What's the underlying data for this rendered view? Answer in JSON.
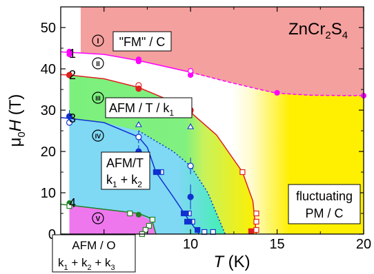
{
  "chart_data": {
    "type": "phase-diagram",
    "title_main": "ZnCr",
    "title_sub": "2",
    "title_end": "S",
    "title_sub2": "4",
    "xlabel": "T",
    "xunit": "(K)",
    "ylabel_prefix": "μ",
    "ylabel_sub": "0",
    "ylabel_var": "H",
    "yunit": "(T)",
    "xlim": [
      2.5,
      20
    ],
    "ylim": [
      0,
      55
    ],
    "xticks": [
      "5",
      "10",
      "15",
      "20"
    ],
    "xtick_values": [
      5,
      10,
      15,
      20
    ],
    "yticks": [
      "0",
      "10",
      "20",
      "30",
      "40",
      "50"
    ],
    "ytick_values": [
      0,
      10,
      20,
      30,
      40,
      50
    ],
    "phase_labels": [
      {
        "roman": "I",
        "name": "\"FM\" / C"
      },
      {
        "roman": "II",
        "name": ""
      },
      {
        "roman": "III",
        "name": "AFM / T / k",
        "sub": "1"
      },
      {
        "roman": "IV",
        "name": "AFM/T",
        "line2": "k",
        "sub": "1",
        "mid": " + k",
        "sub2": "2"
      },
      {
        "roman": "V",
        "name": "AFM / O",
        "line2": "k",
        "sub": "1",
        "mid": " + k",
        "sub2": "2",
        "mid2": " + k",
        "sub3": "3"
      }
    ],
    "boundary_numbers": [
      "1",
      "2",
      "3",
      "4"
    ],
    "fluct_label": [
      "fluctuating",
      "PM / C"
    ],
    "colors": {
      "fm": "#f4a09e",
      "fluct": "#ffef00",
      "afm_tk1": "#7cf07c",
      "afm_k1k2": "#7fd8f4",
      "afm_o": "#ee77ee",
      "line1": "#ff00ff",
      "line2": "#e02020",
      "line3": "#1030d0",
      "line4": "#208020",
      "red": "#e02020",
      "blue": "#1030d0",
      "green": "#208020",
      "magenta": "#ff00ff"
    },
    "series": [
      {
        "line": "1",
        "points": [
          [
            3,
            44
          ],
          [
            7,
            42
          ],
          [
            10,
            39
          ],
          [
            15,
            34
          ],
          [
            20,
            33.5
          ]
        ]
      },
      {
        "line": "2",
        "points": [
          [
            3,
            38.5
          ],
          [
            7,
            35.5
          ],
          [
            10,
            29.5
          ],
          [
            13,
            15
          ],
          [
            13.8,
            5
          ],
          [
            13.8,
            1
          ]
        ]
      },
      {
        "line": "3",
        "points": [
          [
            3,
            28
          ],
          [
            7,
            23.5
          ],
          [
            8,
            15
          ],
          [
            9.5,
            5
          ],
          [
            10.5,
            1
          ]
        ]
      },
      {
        "line": "3-dotted",
        "points": [
          [
            3,
            28
          ],
          [
            7,
            25
          ],
          [
            10,
            16.5
          ],
          [
            11.5,
            5
          ],
          [
            12,
            0
          ]
        ]
      },
      {
        "line": "4",
        "points": [
          [
            3,
            7
          ],
          [
            7,
            5
          ],
          [
            7.8,
            3
          ],
          [
            8,
            0
          ]
        ]
      }
    ]
  }
}
